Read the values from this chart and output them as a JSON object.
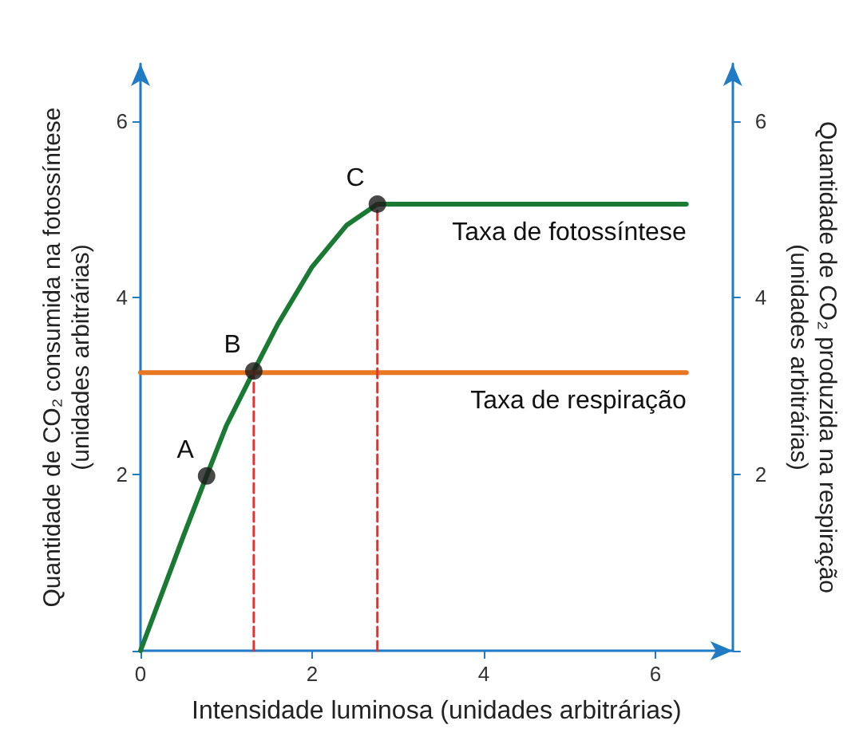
{
  "chart_data": {
    "type": "line",
    "xlabel": "Intensidade luminosa (unidades arbitrárias)",
    "ylabel": "Quantidade de CO₂ consumida na fotossíntese\n(unidades arbitrárias)",
    "y2label": "Quantidade de CO₂ produzida na respiração\n(unidades arbitrárias)",
    "xlim": [
      0,
      6.9
    ],
    "xticks": [
      0,
      2,
      4,
      6
    ],
    "ylim": [
      0,
      6.65
    ],
    "yticks": [
      {
        "value": 0,
        "label": null
      },
      2,
      4,
      6
    ],
    "y2lim": [
      0,
      6.65
    ],
    "y2ticks": [
      {
        "value": 0,
        "label": null
      },
      2,
      4,
      6
    ],
    "grid": false,
    "legend": false,
    "series": [
      {
        "name": "Taxa de fotossíntese",
        "color": "#1a7a34",
        "marker": "none",
        "line_style": "solid",
        "x": [
          0,
          0.5,
          0.77,
          1,
          1.32,
          1.6,
          2,
          2.4,
          2.76,
          3,
          6.36
        ],
        "values": [
          0,
          1.3,
          1.98,
          2.55,
          3.17,
          3.7,
          4.35,
          4.82,
          5.06,
          5.06,
          5.06
        ]
      },
      {
        "name": "Taxa de respiração",
        "color": "#e87722",
        "marker": "none",
        "line_style": "solid",
        "x": [
          0,
          6.36
        ],
        "values": [
          3.15,
          3.15
        ]
      },
      {
        "color": "#e8312f",
        "marker": "none",
        "line_style": "dashed",
        "x": [
          1.32,
          1.32
        ],
        "values": [
          0,
          3.17
        ]
      },
      {
        "color": "#e8312f",
        "marker": "none",
        "line_style": "dashed",
        "x": [
          2.76,
          2.76
        ],
        "values": [
          0,
          5.06
        ]
      },
      {
        "type": "scatter",
        "color": "#1a1a1a",
        "marker": "circle",
        "x": [
          0.77,
          1.32,
          2.76
        ],
        "values": [
          1.98,
          3.17,
          5.06
        ]
      }
    ],
    "annotations": [
      {
        "text": "A",
        "x": 0.77,
        "y": 1.98
      },
      {
        "text": "B",
        "x": 1.32,
        "y": 3.17
      },
      {
        "text": "C",
        "x": 2.76,
        "y": 5.06
      }
    ]
  }
}
